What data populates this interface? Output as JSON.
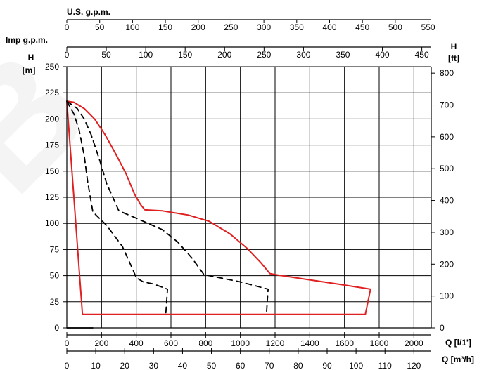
{
  "chart_data": {
    "type": "line",
    "axes": {
      "top_us": {
        "label": "U.S. g.p.m.",
        "ticks": [
          "0",
          "50",
          "100",
          "150",
          "200",
          "250",
          "300",
          "350",
          "400",
          "450",
          "500",
          "550"
        ]
      },
      "top_imp": {
        "label": "Imp g.p.m.",
        "ticks": [
          "0",
          "50",
          "100",
          "150",
          "200",
          "250",
          "300",
          "350",
          "400",
          "450"
        ]
      },
      "left": {
        "label": "H",
        "unit": "[m]",
        "ticks": [
          "0",
          "25",
          "50",
          "75",
          "100",
          "125",
          "150",
          "175",
          "200",
          "225",
          "250"
        ],
        "ylim": [
          0,
          250
        ]
      },
      "right": {
        "label": "H",
        "unit": "[ft]",
        "ticks": [
          "0",
          "100",
          "200",
          "300",
          "400",
          "500",
          "600",
          "700",
          "800"
        ]
      },
      "bottom_lpm": {
        "label": "Q [l/1']",
        "ticks": [
          "0",
          "200",
          "400",
          "600",
          "800",
          "1000",
          "1200",
          "1400",
          "1600",
          "1800",
          "2000"
        ],
        "xlim": [
          0,
          2100
        ]
      },
      "bottom_m3h": {
        "label": "Q [m³/h]",
        "ticks": [
          "0",
          "10",
          "20",
          "30",
          "40",
          "50",
          "60",
          "70",
          "80",
          "90",
          "100",
          "110",
          "120"
        ]
      }
    },
    "grid": true,
    "series": [
      {
        "color": "#e02020",
        "style": "solid",
        "points": [
          [
            0,
            217
          ],
          [
            40,
            216
          ],
          [
            100,
            210
          ],
          [
            160,
            200
          ],
          [
            220,
            185
          ],
          [
            280,
            167
          ],
          [
            340,
            148
          ],
          [
            390,
            128
          ],
          [
            425,
            118
          ],
          [
            450,
            113
          ],
          [
            550,
            112
          ],
          [
            700,
            108
          ],
          [
            820,
            102
          ],
          [
            940,
            90
          ],
          [
            1040,
            76
          ],
          [
            1120,
            62
          ],
          [
            1170,
            52
          ],
          [
            1200,
            51
          ],
          [
            1400,
            46
          ],
          [
            1600,
            41
          ],
          [
            1750,
            37
          ],
          [
            1720,
            13
          ],
          [
            90,
            13
          ],
          [
            0,
            217
          ]
        ]
      },
      {
        "color": "#000000",
        "style": "dashed",
        "points": [
          [
            0,
            217
          ],
          [
            60,
            210
          ],
          [
            100,
            200
          ],
          [
            140,
            185
          ],
          [
            190,
            160
          ],
          [
            230,
            138
          ],
          [
            300,
            112
          ],
          [
            400,
            105
          ],
          [
            550,
            94
          ],
          [
            640,
            82
          ],
          [
            720,
            67
          ],
          [
            790,
            51
          ],
          [
            1000,
            44
          ],
          [
            1160,
            37
          ],
          [
            1150,
            13
          ]
        ]
      },
      {
        "color": "#000000",
        "style": "dashed",
        "points": [
          [
            0,
            217
          ],
          [
            40,
            205
          ],
          [
            70,
            190
          ],
          [
            100,
            165
          ],
          [
            120,
            140
          ],
          [
            150,
            111
          ],
          [
            230,
            98
          ],
          [
            320,
            78
          ],
          [
            380,
            56
          ],
          [
            400,
            48
          ],
          [
            440,
            44
          ],
          [
            500,
            42
          ],
          [
            580,
            37
          ],
          [
            570,
            13
          ]
        ]
      },
      {
        "color": "#000000",
        "style": "solid",
        "points": [
          [
            0,
            0
          ],
          [
            150,
            0
          ]
        ]
      }
    ]
  }
}
